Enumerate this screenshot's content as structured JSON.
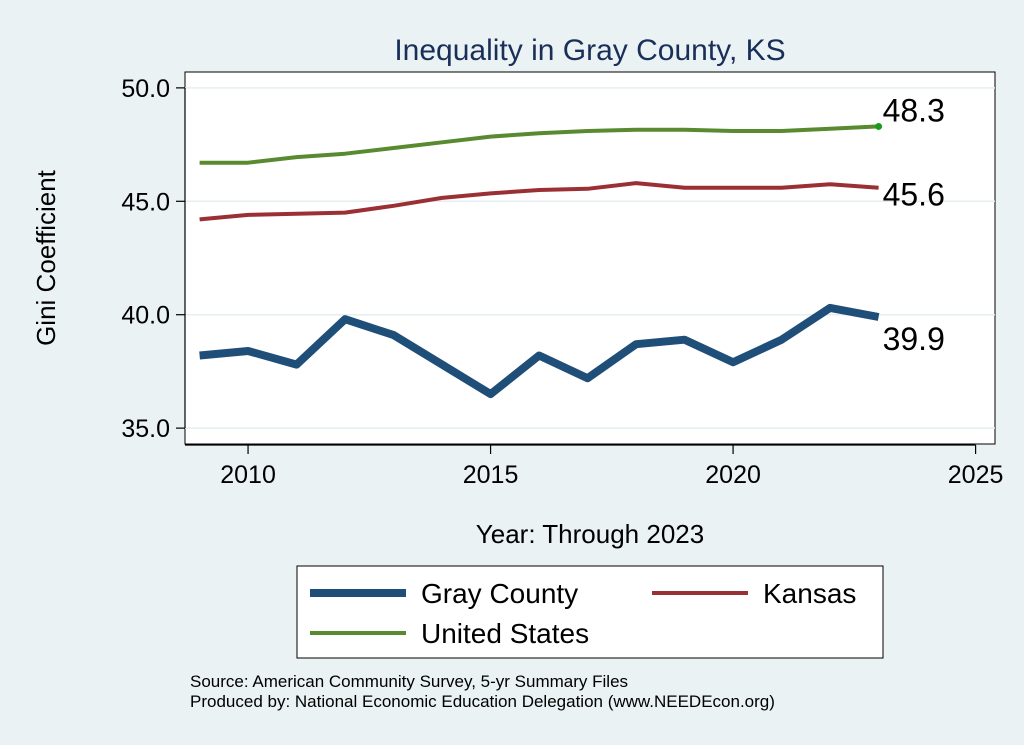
{
  "chart_data": {
    "type": "line",
    "title": "Inequality in Gray County, KS",
    "xlabel": "Year: Through 2023",
    "ylabel": "Gini Coefficient",
    "xlim": [
      2008.7,
      2025.4
    ],
    "ylim": [
      34.3,
      50.7
    ],
    "xticks": [
      2010,
      2015,
      2020,
      2025
    ],
    "yticks": [
      35.0,
      40.0,
      45.0,
      50.0
    ],
    "ytick_labels": [
      "35.0",
      "40.0",
      "45.0",
      "50.0"
    ],
    "grid": true,
    "legend_position": "bottom",
    "x": [
      2009,
      2010,
      2011,
      2012,
      2013,
      2014,
      2015,
      2016,
      2017,
      2018,
      2019,
      2020,
      2021,
      2022,
      2023
    ],
    "series": [
      {
        "name": "Gray County",
        "color": "#1f4e79",
        "values": [
          38.2,
          38.4,
          37.8,
          39.8,
          39.1,
          37.8,
          36.5,
          38.2,
          37.2,
          38.7,
          38.9,
          37.9,
          38.9,
          40.3,
          39.9
        ],
        "end_label": "39.9"
      },
      {
        "name": "Kansas",
        "color": "#9b3034",
        "values": [
          44.2,
          44.4,
          44.45,
          44.5,
          44.8,
          45.15,
          45.35,
          45.5,
          45.55,
          45.8,
          45.6,
          45.6,
          45.6,
          45.75,
          45.6
        ],
        "end_label": "45.6"
      },
      {
        "name": "United States",
        "color": "#5a8a2f",
        "values": [
          46.7,
          46.7,
          46.95,
          47.1,
          47.35,
          47.6,
          47.85,
          48.0,
          48.1,
          48.15,
          48.15,
          48.1,
          48.1,
          48.2,
          48.3
        ],
        "end_label": "48.3"
      }
    ]
  },
  "source": "Source: American Community Survey, 5-yr Summary Files",
  "producer": "Produced by: National Economic Education Delegation (www.NEEDEcon.org)"
}
